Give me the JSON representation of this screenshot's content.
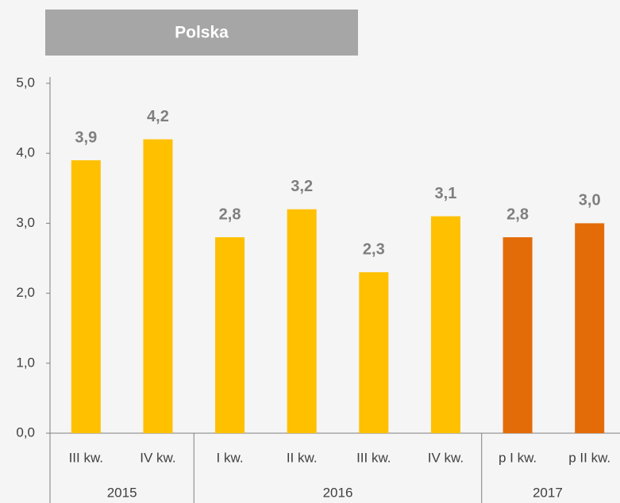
{
  "chart_data": {
    "type": "bar",
    "title": "Polska",
    "categories": [
      "III kw.",
      "IV kw.",
      "I kw.",
      "II kw.",
      "III kw.",
      "IV kw.",
      "p I kw.",
      "p II kw."
    ],
    "category_groups": [
      "2015",
      "2015",
      "2016",
      "2016",
      "2016",
      "2016",
      "2017",
      "2017"
    ],
    "values": [
      3.9,
      4.2,
      2.8,
      3.2,
      2.3,
      3.1,
      2.8,
      3.0
    ],
    "value_labels": [
      "3,9",
      "4,2",
      "2,8",
      "3,2",
      "2,3",
      "3,1",
      "2,8",
      "3,0"
    ],
    "colors": [
      "#FFC000",
      "#FFC000",
      "#FFC000",
      "#FFC000",
      "#FFC000",
      "#FFC000",
      "#E36C09",
      "#E36C09"
    ],
    "ylim": [
      0,
      5
    ],
    "yticks": [
      {
        "value": 0,
        "label": "0,0"
      },
      {
        "value": 1,
        "label": "1,0"
      },
      {
        "value": 2,
        "label": "2,0"
      },
      {
        "value": 3,
        "label": "3,0"
      },
      {
        "value": 4,
        "label": "4,0"
      },
      {
        "value": 5,
        "label": "5,0"
      }
    ],
    "grid": false
  }
}
